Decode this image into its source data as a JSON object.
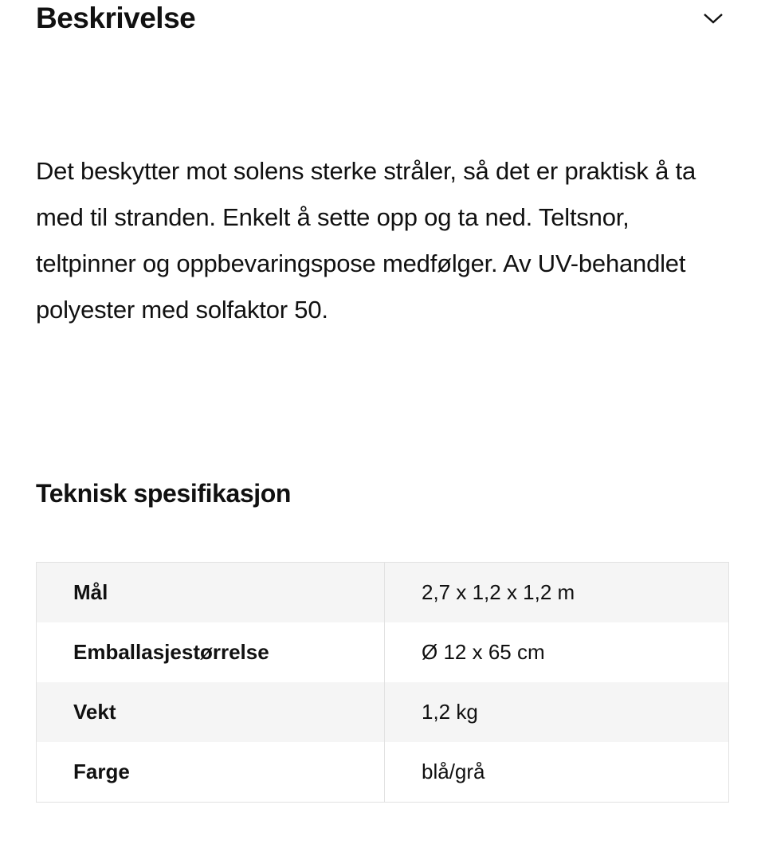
{
  "description": {
    "title": "Beskrivelse",
    "expand_icon": "chevron-down-icon",
    "text": "Det beskytter mot solens sterke stråler, så det er praktisk å ta med til stranden. Enkelt å sette opp og ta ned. Teltsnor, teltpinner og oppbevaringspose medfølger. Av UV-behandlet polyester med solfaktor 50."
  },
  "specs": {
    "title": "Teknisk spesifikasjon",
    "rows": [
      {
        "label": "Mål",
        "value": "2,7 x 1,2 x 1,2 m"
      },
      {
        "label": "Emballasjestørrelse",
        "value": "Ø 12 x 65 cm"
      },
      {
        "label": "Vekt",
        "value": "1,2 kg"
      },
      {
        "label": "Farge",
        "value": "blå/grå"
      }
    ]
  },
  "colors": {
    "row_alt": "#f5f5f5",
    "border": "#e2e2e2",
    "text": "#111111"
  }
}
